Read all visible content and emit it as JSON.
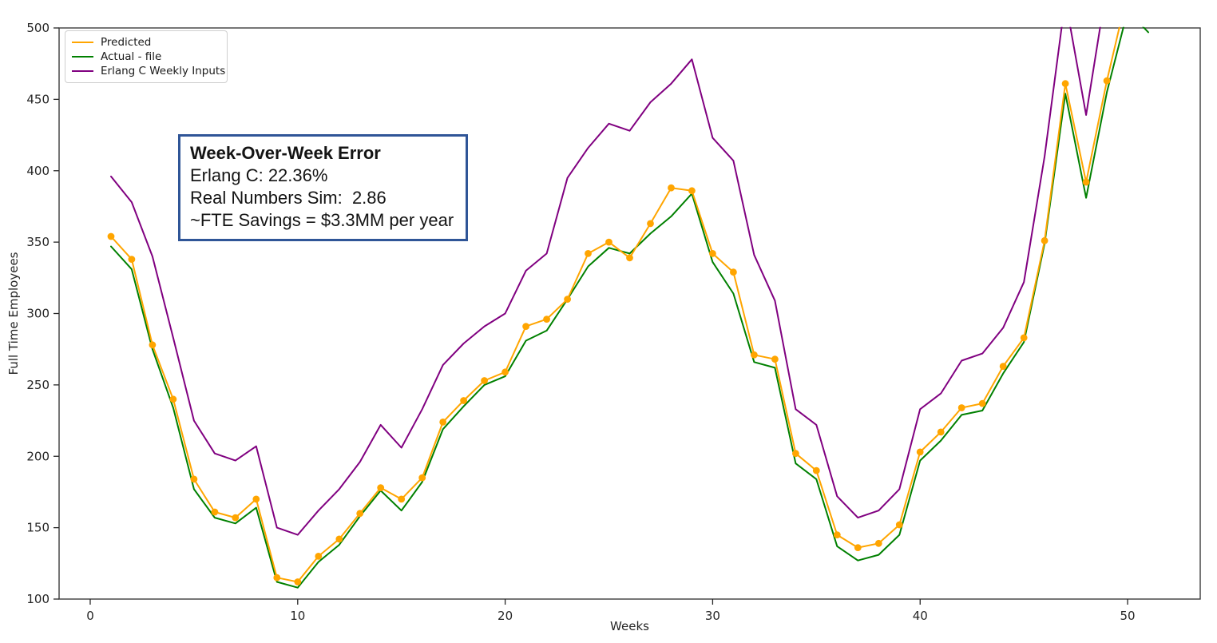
{
  "chart_data": {
    "type": "line",
    "title": "",
    "xlabel": "Weeks",
    "ylabel": "Full Time Employees",
    "xlim": [
      -1.5,
      53.5
    ],
    "ylim": [
      100,
      500
    ],
    "x_ticks": [
      0,
      10,
      20,
      30,
      40,
      50
    ],
    "y_ticks": [
      100,
      150,
      200,
      250,
      300,
      350,
      400,
      450,
      500
    ],
    "grid": false,
    "legend_position": "upper-left",
    "x": [
      1,
      2,
      3,
      4,
      5,
      6,
      7,
      8,
      9,
      10,
      11,
      12,
      13,
      14,
      15,
      16,
      17,
      18,
      19,
      20,
      21,
      22,
      23,
      24,
      25,
      26,
      27,
      28,
      29,
      30,
      31,
      32,
      33,
      34,
      35,
      36,
      37,
      38,
      39,
      40,
      41,
      42,
      43,
      44,
      45,
      46,
      47,
      48,
      49,
      50,
      51
    ],
    "series": [
      {
        "name": "Predicted",
        "color": "#FFA500",
        "marker": "circle",
        "values": [
          354,
          338,
          278,
          240,
          184,
          161,
          157,
          170,
          115,
          112,
          130,
          142,
          160,
          178,
          170,
          185,
          224,
          239,
          253,
          259,
          291,
          296,
          310,
          342,
          350,
          339,
          363,
          388,
          386,
          342,
          329,
          271,
          268,
          202,
          190,
          145,
          136,
          139,
          152,
          203,
          217,
          234,
          237,
          263,
          283,
          351,
          461,
          392,
          463,
          525,
          null
        ]
      },
      {
        "name": "Actual - file",
        "color": "#008000",
        "marker": null,
        "values": [
          347,
          331,
          275,
          234,
          177,
          157,
          153,
          164,
          112,
          108,
          126,
          138,
          158,
          176,
          162,
          182,
          219,
          235,
          250,
          256,
          281,
          288,
          310,
          333,
          346,
          342,
          356,
          368,
          384,
          336,
          314,
          266,
          262,
          195,
          184,
          137,
          127,
          131,
          145,
          197,
          211,
          229,
          232,
          258,
          280,
          349,
          454,
          381,
          455,
          512,
          497
        ]
      },
      {
        "name": "Erlang C Weekly Inputs",
        "color": "#800080",
        "marker": null,
        "values": [
          396,
          378,
          340,
          283,
          225,
          202,
          197,
          207,
          150,
          145,
          162,
          177,
          196,
          222,
          206,
          233,
          264,
          279,
          291,
          300,
          330,
          342,
          395,
          416,
          433,
          428,
          448,
          461,
          478,
          423,
          407,
          341,
          309,
          233,
          222,
          172,
          157,
          162,
          177,
          233,
          244,
          267,
          272,
          290,
          322,
          410,
          520,
          439,
          530,
          null,
          null
        ]
      }
    ]
  },
  "annotation": {
    "title": "Week-Over-Week Error",
    "lines": [
      "Erlang C: 22.36%",
      "Real Numbers Sim:  2.86",
      "~FTE Savings = $3.3MM per year"
    ],
    "border_color": "#2F5597"
  },
  "axis": {
    "spine_color": "#3c3c3c",
    "tick_color": "#262626",
    "label_color": "#262626"
  }
}
